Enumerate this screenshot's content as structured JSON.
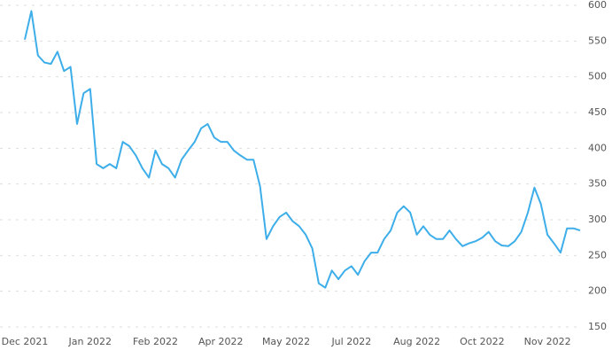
{
  "chart_data": {
    "type": "line",
    "categories": [
      "Dec 2021",
      null,
      null,
      null,
      null,
      null,
      null,
      null,
      null,
      null,
      "Jan 2022",
      null,
      null,
      null,
      null,
      null,
      null,
      null,
      null,
      null,
      "Feb 2022",
      null,
      null,
      null,
      null,
      null,
      null,
      null,
      null,
      null,
      "Apr 2022",
      null,
      null,
      null,
      null,
      null,
      null,
      null,
      null,
      null,
      "May 2022",
      null,
      null,
      null,
      null,
      null,
      null,
      null,
      null,
      null,
      "Jul 2022",
      null,
      null,
      null,
      null,
      null,
      null,
      null,
      null,
      null,
      "Aug 2022",
      null,
      null,
      null,
      null,
      null,
      null,
      null,
      null,
      null,
      "Oct 2022",
      null,
      null,
      null,
      null,
      null,
      null,
      null,
      null,
      null,
      "Nov 2022",
      null,
      null,
      null,
      null,
      null
    ],
    "series": [
      {
        "color": "#3daee9",
        "values": [
          552,
          592,
          530,
          520,
          518,
          535,
          508,
          514,
          434,
          477,
          483,
          378,
          372,
          378,
          372,
          409,
          403,
          390,
          372,
          359,
          397,
          378,
          372,
          359,
          384,
          397,
          409,
          428,
          434,
          415,
          409,
          409,
          397,
          390,
          384,
          384,
          347,
          273,
          291,
          304,
          310,
          298,
          291,
          279,
          260,
          211,
          205,
          229,
          217,
          229,
          235,
          223,
          242,
          254,
          254,
          273,
          285,
          310,
          319,
          310,
          279,
          291,
          279,
          273,
          273,
          285,
          273,
          263,
          267,
          270,
          275,
          283,
          270,
          264,
          263,
          270,
          283,
          310,
          345,
          322,
          279,
          267,
          254,
          288,
          288,
          285
        ]
      }
    ],
    "ylim": [
      150,
      600
    ],
    "yticks": [
      150,
      200,
      250,
      300,
      350,
      400,
      450,
      500,
      550,
      600
    ],
    "grid": true
  }
}
